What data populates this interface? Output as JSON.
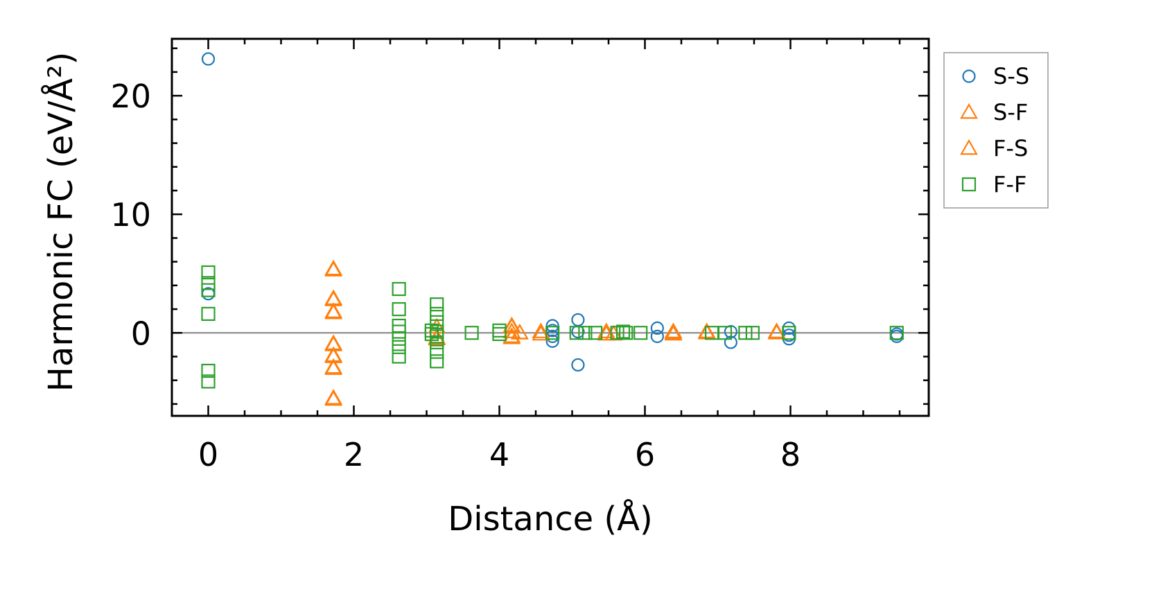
{
  "chart_data": {
    "type": "scatter",
    "xlabel": "Distance (Å)",
    "ylabel": "Harmonic FC (eV/Å²)",
    "xlim": [
      -0.5,
      9.9
    ],
    "ylim": [
      -7.0,
      24.8
    ],
    "xticks": [
      0,
      2,
      4,
      6,
      8
    ],
    "yticks": [
      0,
      10,
      20
    ],
    "grid": false,
    "legend_position": "outside-right",
    "zero_line": true,
    "series": [
      {
        "name": "S-S",
        "marker": "circle",
        "color": "#1f77b4",
        "x": [
          0,
          0,
          4.73,
          4.73,
          4.73,
          4.73,
          5.08,
          5.08,
          5.08,
          6.17,
          6.17,
          7.18,
          7.18,
          7.98,
          7.98,
          7.98,
          9.46,
          9.46
        ],
        "y": [
          23.1,
          3.3,
          0.6,
          0.2,
          -0.3,
          -0.7,
          1.1,
          0.1,
          -2.7,
          0.4,
          -0.3,
          0.1,
          -0.8,
          0.4,
          -0.2,
          -0.5,
          -0.1,
          -0.3
        ]
      },
      {
        "name": "S-F",
        "marker": "triangle",
        "color": "#ff7f0e",
        "x": [
          1.72,
          1.72,
          1.72,
          1.72,
          1.72,
          1.72,
          1.72,
          3.14,
          3.14,
          4.17,
          4.17,
          4.17,
          4.28,
          4.57,
          5.47,
          5.57,
          6.39,
          6.39,
          6.85,
          7.81
        ],
        "y": [
          5.4,
          2.9,
          1.8,
          -0.9,
          -1.9,
          -2.9,
          -5.5,
          0.5,
          -0.5,
          0.6,
          0.1,
          -0.4,
          0.0,
          0.1,
          0.1,
          -0.1,
          0.1,
          -0.1,
          0.0,
          0.0
        ]
      },
      {
        "name": "F-S",
        "marker": "triangle",
        "color": "#ff7f0e",
        "x": [
          1.72,
          1.72,
          1.72,
          1.72,
          1.72,
          1.72,
          1.72,
          3.14,
          4.17,
          4.17,
          4.28,
          4.57,
          5.47,
          6.39,
          6.85,
          7.81
        ],
        "y": [
          5.3,
          2.8,
          1.7,
          -1.0,
          -2.0,
          -3.0,
          -5.6,
          -0.4,
          0.5,
          -0.3,
          0.0,
          -0.1,
          -0.1,
          0.0,
          0.1,
          0.1
        ]
      },
      {
        "name": "F-F",
        "marker": "square",
        "color": "#2ca02c",
        "x": [
          0,
          0,
          0,
          0,
          0,
          0,
          2.62,
          2.62,
          2.62,
          2.62,
          2.62,
          2.62,
          2.62,
          3.07,
          3.07,
          3.14,
          3.14,
          3.14,
          3.14,
          3.14,
          3.14,
          3.14,
          3.14,
          3.62,
          4.0,
          4.0,
          4.73,
          5.06,
          5.18,
          5.32,
          5.62,
          5.7,
          5.74,
          5.94,
          6.92,
          7.1,
          7.38,
          7.48,
          7.98,
          9.46
        ],
        "y": [
          5.1,
          4.2,
          3.6,
          1.6,
          -3.2,
          -4.1,
          3.7,
          2.0,
          0.6,
          0.1,
          -0.5,
          -1.2,
          -2.0,
          0.2,
          -0.1,
          2.4,
          1.6,
          0.9,
          0.1,
          -0.3,
          -0.8,
          -1.6,
          -2.4,
          0.0,
          0.2,
          -0.1,
          0.0,
          0.0,
          0.0,
          0.0,
          0.0,
          0.1,
          0.0,
          0.0,
          0.0,
          0.0,
          0.0,
          0.0,
          0.0,
          0.0
        ]
      }
    ]
  }
}
